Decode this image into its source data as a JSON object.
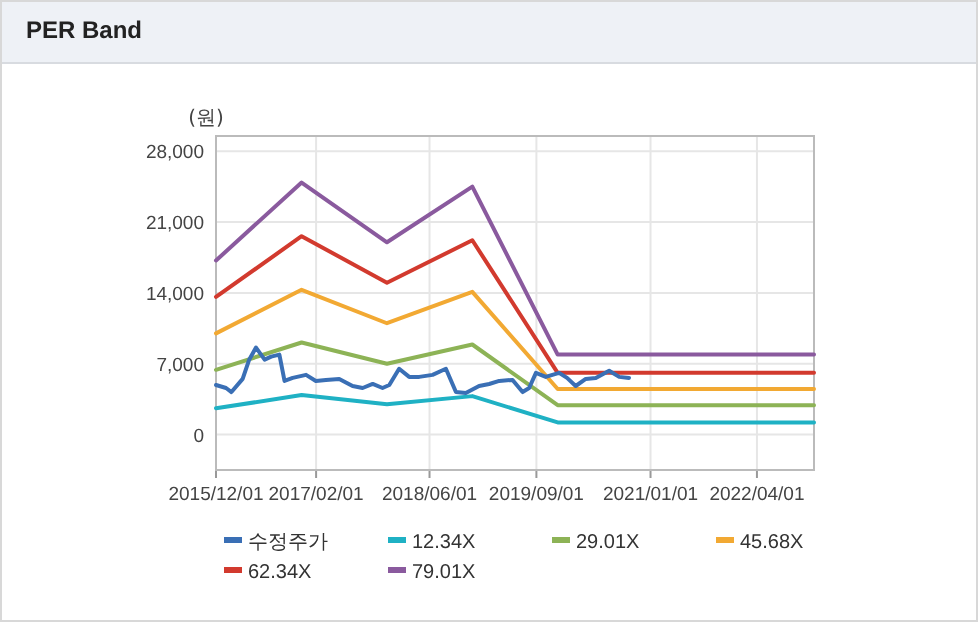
{
  "chart_data": {
    "type": "line",
    "title": "PER Band",
    "ylabel": "(원)",
    "xlim": [
      "2015-12-01",
      "2022-12-01"
    ],
    "xticks": [
      {
        "value": "2015-12-01",
        "label": "2015/12/01"
      },
      {
        "value": "2017-02-01",
        "label": "2017/02/01"
      },
      {
        "value": "2018-06-01",
        "label": "2018/06/01"
      },
      {
        "value": "2019-09-01",
        "label": "2019/09/01"
      },
      {
        "value": "2021-01-01",
        "label": "2021/01/01"
      },
      {
        "value": "2022-04-01",
        "label": "2022/04/01"
      }
    ],
    "ylim": [
      -3500,
      29500
    ],
    "yticks": [
      {
        "value": 0,
        "label": "0"
      },
      {
        "value": 7000,
        "label": "7,000"
      },
      {
        "value": 14000,
        "label": "14,000"
      },
      {
        "value": 21000,
        "label": "21,000"
      },
      {
        "value": 28000,
        "label": "28,000"
      }
    ],
    "grid": true,
    "legend": "bottom",
    "series": [
      {
        "name": "수정주가",
        "color": "#3a6fb5",
        "x": [
          "2015-12-01",
          "2016-01-13",
          "2016-02-05",
          "2016-03-24",
          "2016-04-21",
          "2016-05-20",
          "2016-06-26",
          "2016-07-24",
          "2016-08-28",
          "2016-09-19",
          "2016-10-24",
          "2016-12-20",
          "2017-01-31",
          "2017-03-15",
          "2017-05-11",
          "2017-07-07",
          "2017-08-19",
          "2017-10-01",
          "2017-11-12",
          "2017-12-11",
          "2018-01-22",
          "2018-03-06",
          "2018-04-18",
          "2018-06-14",
          "2018-08-10",
          "2018-09-22",
          "2018-11-03",
          "2018-12-30",
          "2019-02-11",
          "2019-03-26",
          "2019-05-22",
          "2019-07-04",
          "2019-08-01",
          "2019-08-30",
          "2019-10-11",
          "2019-12-07",
          "2020-01-10",
          "2020-02-16",
          "2020-03-30",
          "2020-05-12",
          "2020-07-08",
          "2020-08-20",
          "2020-10-01"
        ],
        "values": [
          4900,
          4600,
          4200,
          5500,
          7400,
          8600,
          7400,
          7700,
          7900,
          5300,
          5600,
          5900,
          5300,
          5400,
          5500,
          4800,
          4600,
          5000,
          4600,
          4900,
          6500,
          5700,
          5700,
          5900,
          6500,
          4200,
          4100,
          4800,
          5000,
          5300,
          5400,
          4200,
          4600,
          6100,
          5700,
          6100,
          5600,
          4800,
          5500,
          5600,
          6300,
          5700,
          5600
        ]
      },
      {
        "name": "12.34X",
        "color": "#1fb1c4",
        "x": [
          "2015-12-01",
          "2016-12-01",
          "2017-12-01",
          "2018-12-01",
          "2019-12-01",
          "2022-12-01"
        ],
        "values": [
          2600,
          3900,
          3000,
          3800,
          1200,
          1200
        ]
      },
      {
        "name": "29.01X",
        "color": "#8db356",
        "x": [
          "2015-12-01",
          "2016-12-01",
          "2017-12-01",
          "2018-12-01",
          "2019-12-01",
          "2022-12-01"
        ],
        "values": [
          6400,
          9100,
          7000,
          8900,
          2900,
          2900
        ]
      },
      {
        "name": "45.68X",
        "color": "#f2a933",
        "x": [
          "2015-12-01",
          "2016-12-01",
          "2017-12-01",
          "2018-12-01",
          "2019-12-01",
          "2022-12-01"
        ],
        "values": [
          10000,
          14300,
          11000,
          14100,
          4500,
          4500
        ]
      },
      {
        "name": "62.34X",
        "color": "#d23a2e",
        "x": [
          "2015-12-01",
          "2016-12-01",
          "2017-12-01",
          "2018-12-01",
          "2019-12-01",
          "2022-12-01"
        ],
        "values": [
          13600,
          19600,
          15000,
          19200,
          6100,
          6100
        ]
      },
      {
        "name": "79.01X",
        "color": "#8a5a9e",
        "x": [
          "2015-12-01",
          "2016-12-01",
          "2017-12-01",
          "2018-12-01",
          "2019-12-01",
          "2022-12-01"
        ],
        "values": [
          17200,
          24900,
          19000,
          24500,
          7900,
          7900
        ]
      }
    ]
  }
}
